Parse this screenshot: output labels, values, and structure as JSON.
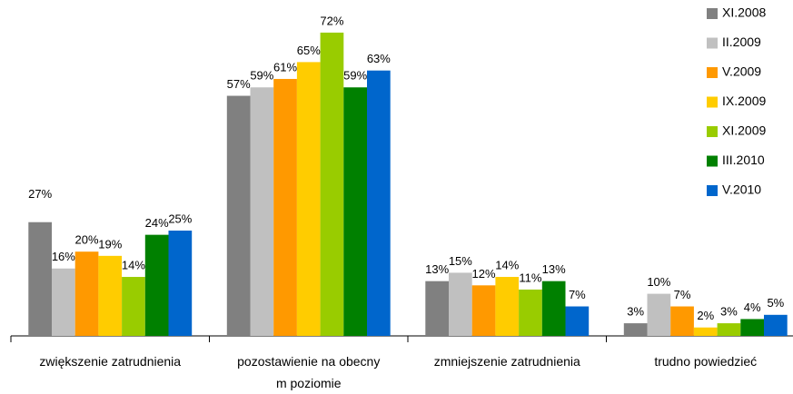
{
  "chart_data": {
    "type": "bar",
    "categories": [
      "zwiększenie zatrudnienia",
      "pozostawienie na obecny m poziomie",
      "zmniejszenie zatrudnienia",
      "trudno powiedzieć"
    ],
    "series": [
      {
        "name": "XI.2008",
        "color": "#808080",
        "values": [
          27,
          57,
          13,
          3
        ],
        "value_labels": [
          "27%",
          "57%",
          "13%",
          "3%"
        ]
      },
      {
        "name": "II.2009",
        "color": "#c0c0c0",
        "values": [
          16,
          59,
          15,
          10
        ],
        "value_labels": [
          "16%",
          "59%",
          "15%",
          "10%"
        ]
      },
      {
        "name": "V.2009",
        "color": "#ff9900",
        "values": [
          20,
          61,
          12,
          7
        ],
        "value_labels": [
          "20%",
          "61%",
          "12%",
          "7%"
        ]
      },
      {
        "name": "IX.2009",
        "color": "#ffcc00",
        "values": [
          19,
          65,
          14,
          2
        ],
        "value_labels": [
          "19%",
          "65%",
          "14%",
          "2%"
        ]
      },
      {
        "name": "XI.2009",
        "color": "#99cc00",
        "values": [
          14,
          72,
          11,
          3
        ],
        "value_labels": [
          "14%",
          "72%",
          "11%",
          "3%"
        ]
      },
      {
        "name": "III.2010",
        "color": "#008000",
        "values": [
          24,
          59,
          13,
          4
        ],
        "value_labels": [
          "24%",
          "59%",
          "13%",
          "4%"
        ]
      },
      {
        "name": "V.2010",
        "color": "#0066cc",
        "values": [
          25,
          63,
          7,
          5
        ],
        "value_labels": [
          "25%",
          "63%",
          "7%",
          "5%"
        ]
      }
    ],
    "legend": "right"
  }
}
